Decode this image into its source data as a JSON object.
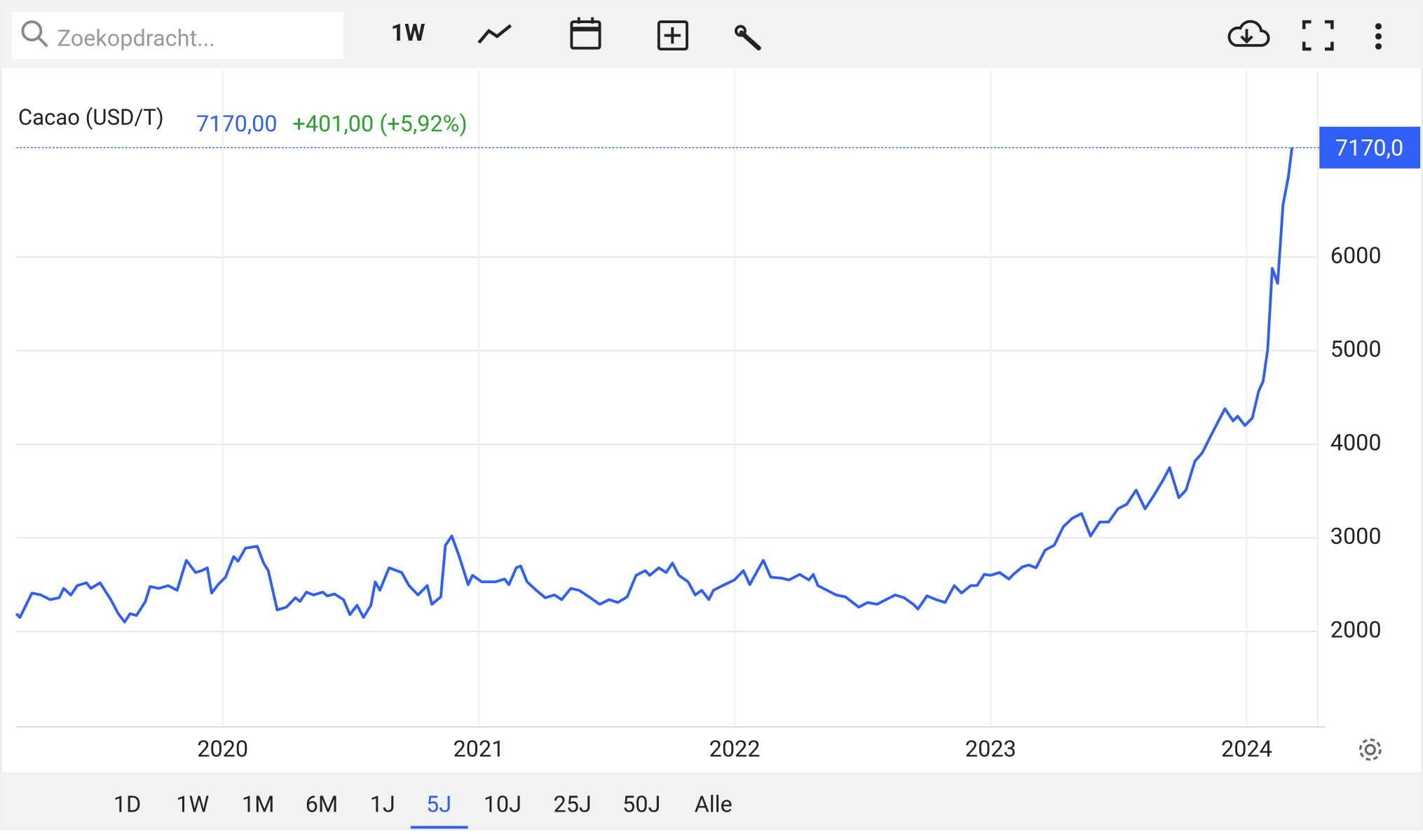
{
  "toolbar": {
    "search_placeholder": "Zoekopdracht...",
    "interval": "1W"
  },
  "chart_data": {
    "type": "line",
    "title": "Cacao (USD/T)",
    "color": "#2f5ff5",
    "last": {
      "value": 7170,
      "label": "7170,00",
      "change": "+401,00 (+5,92%)",
      "tag": "7170,0"
    },
    "x": [
      2019.194,
      2019.208,
      2019.255,
      2019.29,
      2019.326,
      2019.361,
      2019.379,
      2019.407,
      2019.432,
      2019.468,
      2019.485,
      2019.521,
      2019.563,
      2019.592,
      2019.617,
      2019.638,
      2019.663,
      2019.698,
      2019.716,
      2019.751,
      2019.787,
      2019.822,
      2019.858,
      2019.894,
      2019.918,
      2019.94,
      2019.957,
      2019.982,
      2020.011,
      2020.043,
      2020.06,
      2020.089,
      2020.135,
      2020.16,
      2020.178,
      2020.213,
      2020.249,
      2020.284,
      2020.302,
      2020.327,
      2020.355,
      2020.391,
      2020.408,
      2020.437,
      2020.472,
      2020.497,
      2020.525,
      2020.55,
      2020.579,
      2020.596,
      2020.614,
      2020.65,
      2020.699,
      2020.728,
      2020.763,
      2020.799,
      2020.817,
      2020.852,
      2020.87,
      2020.895,
      2020.923,
      2020.959,
      2020.976,
      2021.012,
      2021.065,
      2021.101,
      2021.118,
      2021.147,
      2021.164,
      2021.189,
      2021.225,
      2021.26,
      2021.296,
      2021.324,
      2021.36,
      2021.392,
      2021.431,
      2021.473,
      2021.509,
      2021.544,
      2021.58,
      2021.615,
      2021.651,
      2021.668,
      2021.704,
      2021.732,
      2021.757,
      2021.782,
      2021.818,
      2021.846,
      2021.871,
      2021.899,
      2021.917,
      2021.953,
      2021.999,
      2022.034,
      2022.059,
      2022.095,
      2022.112,
      2022.141,
      2022.183,
      2022.212,
      2022.254,
      2022.29,
      2022.307,
      2022.325,
      2022.361,
      2022.396,
      2022.432,
      2022.485,
      2022.52,
      2022.556,
      2022.591,
      2022.627,
      2022.662,
      2022.698,
      2022.716,
      2022.751,
      2022.787,
      2022.822,
      2022.858,
      2022.886,
      2022.922,
      2022.947,
      2022.975,
      2023.0,
      2023.035,
      2023.071,
      2023.089,
      2023.124,
      2023.149,
      2023.177,
      2023.213,
      2023.248,
      2023.284,
      2023.319,
      2023.355,
      2023.39,
      2023.426,
      2023.461,
      2023.497,
      2023.532,
      2023.568,
      2023.603,
      2023.639,
      2023.674,
      2023.699,
      2023.735,
      2023.763,
      2023.798,
      2023.827,
      2023.869,
      2023.915,
      2023.947,
      2023.965,
      2023.993,
      2024.022,
      2024.047,
      2024.064,
      2024.082,
      2024.1,
      2024.121,
      2024.142,
      2024.163,
      2024.177
    ],
    "values": [
      2190,
      2150,
      2410,
      2390,
      2340,
      2360,
      2460,
      2390,
      2490,
      2520,
      2460,
      2520,
      2340,
      2190,
      2100,
      2190,
      2170,
      2320,
      2480,
      2460,
      2490,
      2440,
      2760,
      2630,
      2650,
      2680,
      2410,
      2500,
      2580,
      2800,
      2750,
      2890,
      2910,
      2730,
      2650,
      2230,
      2260,
      2360,
      2320,
      2420,
      2390,
      2420,
      2380,
      2400,
      2340,
      2180,
      2280,
      2150,
      2280,
      2530,
      2440,
      2680,
      2630,
      2490,
      2390,
      2490,
      2290,
      2370,
      2920,
      3020,
      2810,
      2500,
      2600,
      2530,
      2530,
      2560,
      2500,
      2680,
      2700,
      2530,
      2440,
      2360,
      2390,
      2340,
      2460,
      2440,
      2370,
      2290,
      2340,
      2310,
      2370,
      2600,
      2650,
      2600,
      2680,
      2630,
      2730,
      2600,
      2530,
      2390,
      2440,
      2340,
      2440,
      2490,
      2550,
      2650,
      2500,
      2680,
      2760,
      2580,
      2570,
      2550,
      2610,
      2550,
      2610,
      2490,
      2440,
      2390,
      2370,
      2260,
      2310,
      2290,
      2340,
      2390,
      2360,
      2290,
      2240,
      2380,
      2340,
      2310,
      2490,
      2410,
      2490,
      2490,
      2610,
      2600,
      2630,
      2560,
      2610,
      2690,
      2710,
      2680,
      2870,
      2920,
      3120,
      3210,
      3260,
      3020,
      3170,
      3170,
      3310,
      3360,
      3510,
      3310,
      3460,
      3620,
      3750,
      3430,
      3510,
      3820,
      3910,
      4140,
      4380,
      4250,
      4300,
      4200,
      4280,
      4570,
      4670,
      5010,
      5880,
      5720,
      6560,
      6860,
      7170
    ],
    "xlim": [
      2019.194,
      2024.277
    ],
    "xticks": [
      2020,
      2021,
      2022,
      2023,
      2024
    ],
    "ylim": [
      980,
      7990
    ],
    "yticks": [
      2000,
      3000,
      4000,
      5000,
      6000
    ],
    "grid": true
  },
  "ranges": {
    "options": [
      "1D",
      "1W",
      "1M",
      "6M",
      "1J",
      "5J",
      "10J",
      "25J",
      "50J",
      "Alle"
    ],
    "selected": 5
  }
}
